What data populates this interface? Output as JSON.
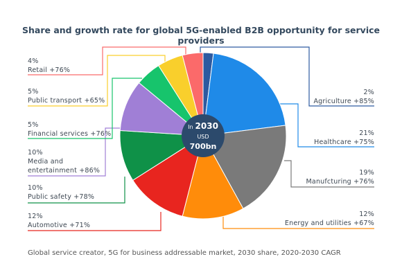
{
  "chart_data": {
    "type": "pie",
    "title": "Share and growth rate for global 5G-enabled B2B opportunity for service providers",
    "footnote": "Global service creator, 5G for business addressable market, 2030 share, 2020-2030 CAGR",
    "center_label": {
      "prefix": "In",
      "year": "2030",
      "unit": "USD",
      "total": "700bn"
    },
    "categories": [
      "Agriculture +85%",
      "Healthcare +75%",
      "Manufcturing +76%",
      "Energy and utilities +67%",
      "Automotive +71%",
      "Public safety +78%",
      "Media and entertainment +86%",
      "Financial services +76%",
      "Public transport +65%",
      "Retail +76%"
    ],
    "values": [
      2,
      21,
      19,
      12,
      12,
      10,
      10,
      5,
      5,
      4
    ],
    "value_labels": [
      "2%",
      "21%",
      "19%",
      "12%",
      "12%",
      "10%",
      "10%",
      "5%",
      "5%",
      "4%"
    ],
    "colors": [
      "#2d5aa0",
      "#1f8ae8",
      "#7a7a7a",
      "#ff8c0a",
      "#e8251f",
      "#0f9148",
      "#a07fd6",
      "#17c46c",
      "#f9cf2c",
      "#fb6a6a"
    ]
  }
}
